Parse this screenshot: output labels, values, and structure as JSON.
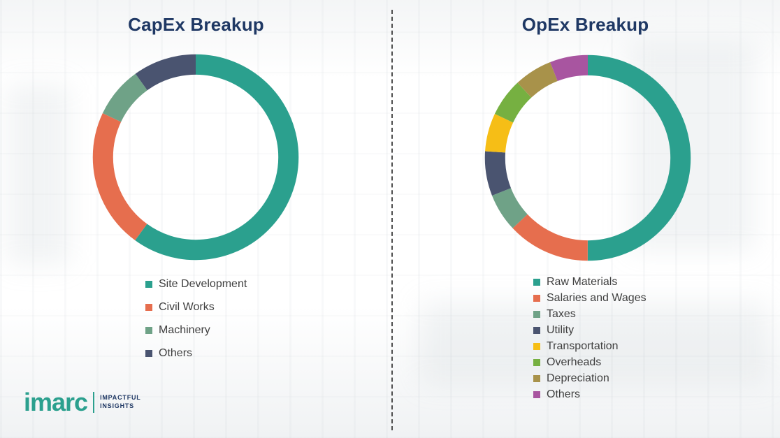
{
  "chart_data": [
    {
      "type": "pie",
      "donut": true,
      "title": "CapEx Breakup",
      "labels": [
        "Site Development",
        "Civil Works",
        "Machinery",
        "Others"
      ],
      "values": [
        60,
        22,
        8,
        10
      ],
      "colors": [
        "#2BA08E",
        "#E66E4E",
        "#6FA287",
        "#4A5470"
      ],
      "legend_position": "bottom"
    },
    {
      "type": "pie",
      "donut": true,
      "title": "OpEx Breakup",
      "labels": [
        "Raw Materials",
        "Salaries and Wages",
        "Taxes",
        "Utility",
        "Transportation",
        "Overheads",
        "Depreciation",
        "Others"
      ],
      "values": [
        50,
        13,
        6,
        7,
        6,
        6,
        6,
        6
      ],
      "colors": [
        "#2BA08E",
        "#E66E4E",
        "#6FA287",
        "#4A5470",
        "#F6BE16",
        "#76B041",
        "#A8924A",
        "#A855A0"
      ],
      "legend_position": "bottom"
    }
  ],
  "logo": {
    "brand": "imarc",
    "tagline": [
      "IMPACTFUL",
      "INSIGHTS"
    ]
  },
  "colors": {
    "title_text": "#1F3864",
    "legend_text": "#3F3F3F",
    "brand_teal": "#2BA08E"
  }
}
